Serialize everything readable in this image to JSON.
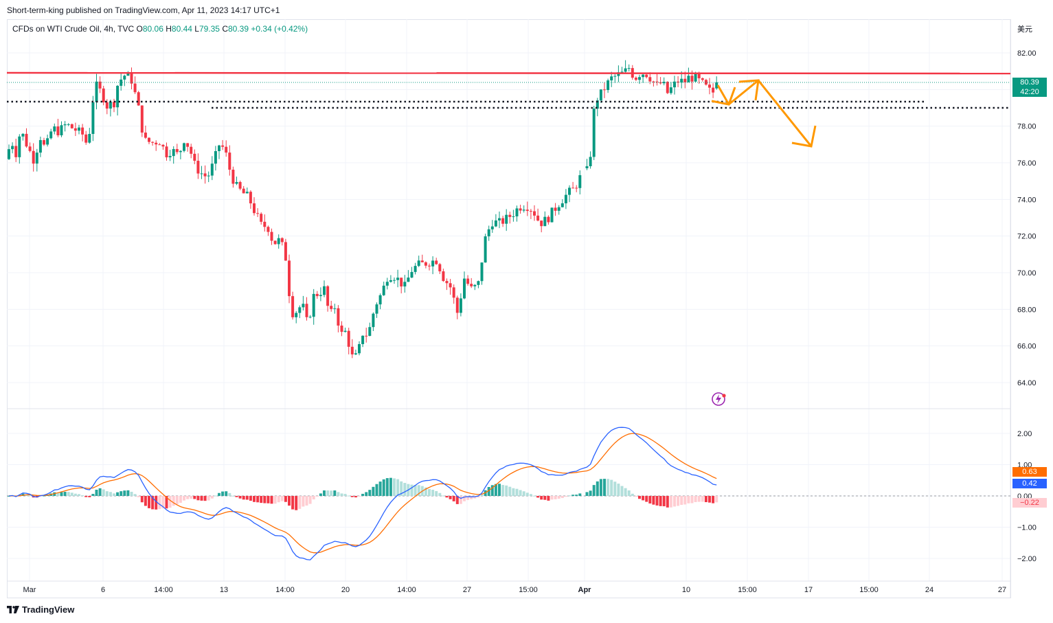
{
  "header": {
    "published": "Short-term-king published on TradingView.com, Apr 11, 2023 14:17 UTC+1"
  },
  "symbol": {
    "name": "CFDs on WTI Crude Oil, 4h, TVC",
    "open_label": "O",
    "open": "80.06",
    "high_label": "H",
    "high": "80.44",
    "low_label": "L",
    "low": "79.35",
    "close_label": "C",
    "close": "80.39",
    "change": "+0.34 (+0.42%)"
  },
  "currency_label": "美元",
  "price_tag": {
    "price": "80.39",
    "countdown": "42:20"
  },
  "macd_tags": {
    "signal": "0.63",
    "macd": "0.42",
    "hist": "−0.22"
  },
  "footer": {
    "brand": "TradingView"
  },
  "colors": {
    "up": "#089981",
    "down": "#f23645",
    "up_light": "#b2dfdb",
    "down_light": "#ffcdd2",
    "macd": "#2962ff",
    "signal": "#ff6d00",
    "resistance": "#f23645",
    "arrow": "#ff9800"
  },
  "chart_data": [
    {
      "type": "candlestick",
      "y_axis_ticks": [
        "82.00",
        "80.00",
        "78.00",
        "76.00",
        "74.00",
        "72.00",
        "70.00",
        "68.00",
        "66.00",
        "64.00"
      ],
      "ylim": [
        62.6,
        83.6
      ],
      "x_axis_ticks": [
        "Mar",
        "6",
        "14:00",
        "13",
        "14:00",
        "20",
        "14:00",
        "27",
        "15:00",
        "Apr",
        "10",
        "15:00",
        "17",
        "15:00",
        "24",
        "27"
      ],
      "series_points": [
        [
          0,
          76.2
        ],
        [
          6,
          77.3
        ],
        [
          13,
          76.5
        ],
        [
          20,
          77.8
        ],
        [
          30,
          76.9
        ],
        [
          40,
          76.1
        ],
        [
          48,
          77.5
        ],
        [
          56,
          76.7
        ],
        [
          66,
          77.9
        ],
        [
          76,
          77.7
        ],
        [
          86,
          78.1
        ],
        [
          100,
          77.8
        ],
        [
          112,
          77.5
        ],
        [
          118,
          76.8
        ],
        [
          124,
          79.2
        ],
        [
          130,
          80.2
        ],
        [
          138,
          79.8
        ],
        [
          146,
          79.1
        ],
        [
          156,
          79.3
        ],
        [
          162,
          80.4
        ],
        [
          172,
          80.8
        ],
        [
          182,
          80.5
        ],
        [
          192,
          78.9
        ],
        [
          200,
          77.2
        ],
        [
          212,
          77.1
        ],
        [
          222,
          77.2
        ],
        [
          232,
          76.5
        ],
        [
          240,
          76.7
        ],
        [
          250,
          76.4
        ],
        [
          258,
          77.3
        ],
        [
          266,
          76.8
        ],
        [
          274,
          75.8
        ],
        [
          284,
          75.4
        ],
        [
          292,
          75.2
        ],
        [
          300,
          75.9
        ],
        [
          310,
          77.1
        ],
        [
          318,
          76.6
        ],
        [
          326,
          75.4
        ],
        [
          334,
          74.7
        ],
        [
          342,
          74.4
        ],
        [
          352,
          74.1
        ],
        [
          360,
          73.4
        ],
        [
          370,
          72.6
        ],
        [
          380,
          72.5
        ],
        [
          388,
          71.6
        ],
        [
          398,
          71.8
        ],
        [
          406,
          70.8
        ],
        [
          414,
          67.8
        ],
        [
          422,
          67.9
        ],
        [
          430,
          68.3
        ],
        [
          438,
          67.1
        ],
        [
          446,
          68.7
        ],
        [
          454,
          68.9
        ],
        [
          462,
          69.1
        ],
        [
          470,
          67.6
        ],
        [
          478,
          68.2
        ],
        [
          486,
          66.6
        ],
        [
          494,
          66.8
        ],
        [
          502,
          65.4
        ],
        [
          510,
          65.4
        ],
        [
          518,
          66.7
        ],
        [
          526,
          66.6
        ],
        [
          536,
          68.2
        ],
        [
          546,
          68.9
        ],
        [
          554,
          69.8
        ],
        [
          562,
          69.9
        ],
        [
          570,
          69.6
        ],
        [
          580,
          69.2
        ],
        [
          588,
          70.1
        ],
        [
          598,
          70.4
        ],
        [
          608,
          70.5
        ],
        [
          616,
          70.6
        ],
        [
          626,
          70.7
        ],
        [
          636,
          69.7
        ],
        [
          646,
          69.2
        ],
        [
          656,
          67.8
        ],
        [
          666,
          69.7
        ],
        [
          676,
          69.1
        ],
        [
          686,
          69.3
        ],
        [
          696,
          71.8
        ],
        [
          706,
          72.8
        ],
        [
          716,
          72.7
        ],
        [
          726,
          72.9
        ],
        [
          736,
          73.2
        ],
        [
          746,
          73.6
        ],
        [
          756,
          73.7
        ],
        [
          766,
          73.4
        ],
        [
          776,
          72.7
        ],
        [
          786,
          72.9
        ],
        [
          796,
          73.4
        ],
        [
          806,
          73.9
        ],
        [
          816,
          74.3
        ],
        [
          826,
          74.6
        ],
        [
          836,
          75.3
        ],
        [
          846,
          75.6
        ],
        [
          850,
          76.6
        ],
        [
          856,
          79.4
        ],
        [
          864,
          79.7
        ],
        [
          872,
          80.2
        ],
        [
          880,
          80.6
        ],
        [
          890,
          80.8
        ],
        [
          898,
          80.9
        ],
        [
          906,
          81.2
        ],
        [
          914,
          80.6
        ],
        [
          922,
          80.9
        ],
        [
          930,
          80.9
        ],
        [
          938,
          80.6
        ],
        [
          946,
          80.2
        ],
        [
          954,
          80.4
        ],
        [
          962,
          79.8
        ],
        [
          970,
          80.2
        ],
        [
          978,
          80.5
        ],
        [
          986,
          80.4
        ],
        [
          994,
          80.7
        ],
        [
          1002,
          80.6
        ],
        [
          1010,
          80.4
        ],
        [
          1018,
          80.1
        ],
        [
          1026,
          79.8
        ],
        [
          1034,
          80.0
        ],
        [
          1040,
          80.39
        ],
        [
          1046,
          80.4
        ]
      ],
      "annotations": {
        "resistance_level": 80.9,
        "support_level_1": 79.3,
        "support_level_2": 79.0,
        "projection": "zig-zag down"
      }
    },
    {
      "type": "macd",
      "y_axis_ticks": [
        "2.00",
        "1.00",
        "0.00",
        "−1.00",
        "−2.00"
      ],
      "ylim": [
        -2.5,
        2.4
      ]
    }
  ]
}
